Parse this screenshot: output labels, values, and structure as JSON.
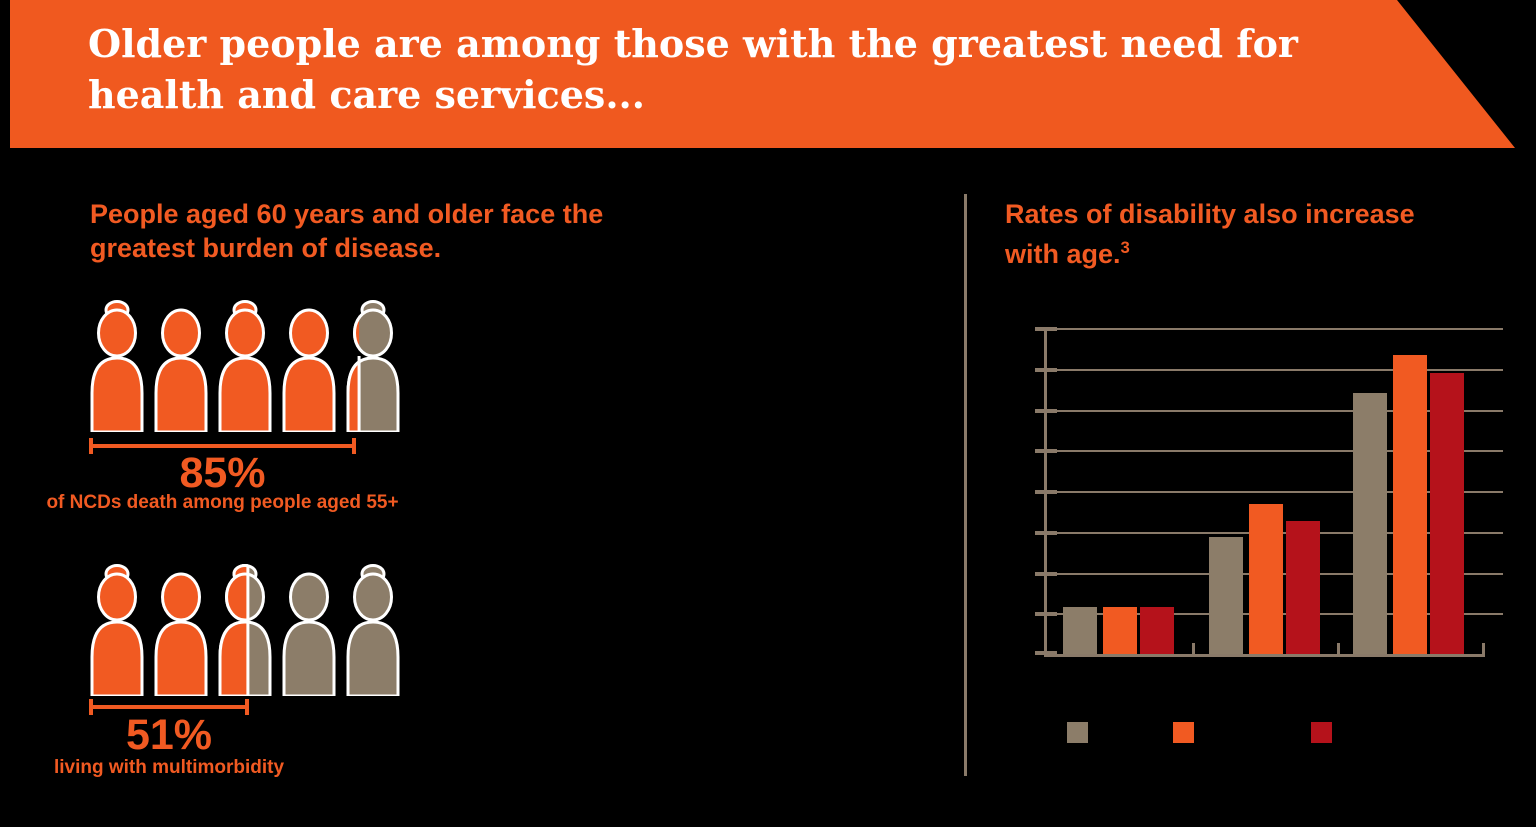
{
  "canvas": {
    "background": "#000000"
  },
  "colors": {
    "banner_orange": "#f0591f",
    "accent_orange": "#f15a22",
    "tan": "#8c7d69",
    "dark_red": "#b5121b",
    "line": "#8a7a69",
    "white": "#ffffff"
  },
  "banner": {
    "title_lines": [
      "Older people are among those with the greatest need for",
      "health and care services..."
    ]
  },
  "left_panel": {
    "heading_lines": [
      "People aged 60 years and older face the",
      "greatest burden of disease."
    ],
    "stats": [
      {
        "percent_label": "85%",
        "value": 85,
        "caption": "of NCDs death among people aged 55+",
        "figures": [
          {
            "type": "female",
            "fill_pct": 100
          },
          {
            "type": "male",
            "fill_pct": 100
          },
          {
            "type": "female",
            "fill_pct": 100
          },
          {
            "type": "male",
            "fill_pct": 100
          },
          {
            "type": "female",
            "fill_pct": 26
          }
        ]
      },
      {
        "percent_label": "51%",
        "value": 51,
        "caption": "living with multimorbidity",
        "figures": [
          {
            "type": "female",
            "fill_pct": 100
          },
          {
            "type": "male",
            "fill_pct": 100
          },
          {
            "type": "female",
            "fill_pct": 55
          },
          {
            "type": "male",
            "fill_pct": 0
          },
          {
            "type": "female",
            "fill_pct": 0
          }
        ]
      }
    ]
  },
  "right_panel": {
    "heading_lines": [
      "Rates of disability also increase",
      "with age."
    ],
    "heading_superscript": "3"
  },
  "chart_data": [
    {
      "type": "pictogram",
      "icon": "person",
      "filled_color": "#f15a22",
      "unfilled_color": "#8c7d69",
      "items": [
        {
          "label": "85%",
          "value": 85,
          "caption": "of NCDs death among people aged 55+",
          "icons_total": 5,
          "icons_filled": 4.25
        },
        {
          "label": "51%",
          "value": 51,
          "caption": "living with multimorbidity",
          "icons_total": 5,
          "icons_filled": 2.55
        }
      ]
    },
    {
      "type": "bar",
      "title_ref": "Rates of disability also increase with age.",
      "categories": [
        "",
        "",
        ""
      ],
      "series": [
        {
          "name": "",
          "color": "#8c7d69",
          "values": [
            5.8,
            14.4,
            32.0
          ]
        },
        {
          "name": "",
          "color": "#f15a22",
          "values": [
            5.8,
            18.4,
            36.7
          ]
        },
        {
          "name": "",
          "color": "#b5121b",
          "values": [
            5.8,
            16.3,
            34.5
          ]
        }
      ],
      "ylim": [
        0,
        40
      ],
      "gridline_step": 5,
      "grid": true,
      "legend_position": "bottom",
      "axis_tick_labels_visible": false,
      "legend_labels_visible": false
    }
  ]
}
